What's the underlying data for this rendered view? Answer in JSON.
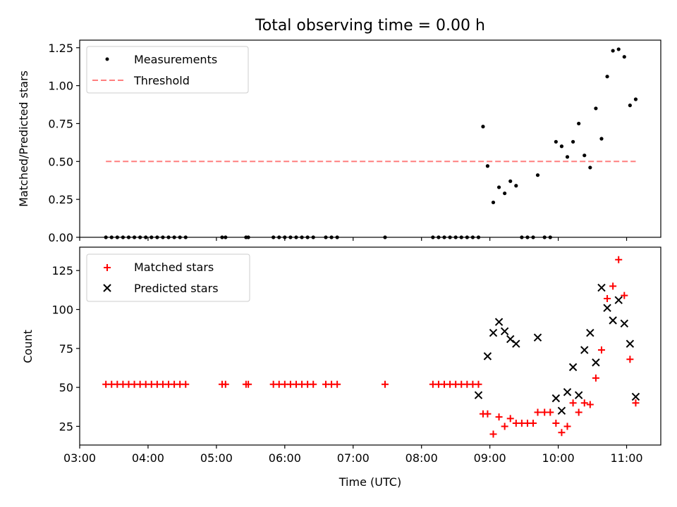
{
  "chart_data": [
    {
      "type": "scatter",
      "title": "Total observing time = 0.00 h",
      "ylabel": "Matched/Predicted stars",
      "ylim": [
        0,
        1.3
      ],
      "yticks": [
        0.0,
        0.25,
        0.5,
        0.75,
        1.0,
        1.25
      ],
      "ytick_labels": [
        "0.00",
        "0.25",
        "0.50",
        "0.75",
        "1.00",
        "1.25"
      ],
      "legend_position": "top-left",
      "series": [
        {
          "name": "Measurements",
          "marker": "dot",
          "color": "#000000",
          "points": [
            [
              "03:23",
              0
            ],
            [
              "03:28",
              0
            ],
            [
              "03:33",
              0
            ],
            [
              "03:38",
              0
            ],
            [
              "03:43",
              0
            ],
            [
              "03:48",
              0
            ],
            [
              "03:53",
              0
            ],
            [
              "03:58",
              0
            ],
            [
              "04:03",
              0
            ],
            [
              "04:08",
              0
            ],
            [
              "04:13",
              0
            ],
            [
              "04:18",
              0
            ],
            [
              "04:23",
              0
            ],
            [
              "04:28",
              0
            ],
            [
              "04:33",
              0
            ],
            [
              "05:05",
              0
            ],
            [
              "05:08",
              0
            ],
            [
              "05:26",
              0
            ],
            [
              "05:28",
              0
            ],
            [
              "05:50",
              0
            ],
            [
              "05:55",
              0
            ],
            [
              "06:00",
              0
            ],
            [
              "06:05",
              0
            ],
            [
              "06:10",
              0
            ],
            [
              "06:15",
              0
            ],
            [
              "06:20",
              0
            ],
            [
              "06:25",
              0
            ],
            [
              "06:36",
              0
            ],
            [
              "06:41",
              0
            ],
            [
              "06:46",
              0
            ],
            [
              "07:28",
              0
            ],
            [
              "08:10",
              0
            ],
            [
              "08:15",
              0
            ],
            [
              "08:20",
              0
            ],
            [
              "08:25",
              0
            ],
            [
              "08:30",
              0
            ],
            [
              "08:35",
              0
            ],
            [
              "08:40",
              0
            ],
            [
              "08:45",
              0
            ],
            [
              "08:50",
              0
            ],
            [
              "08:54",
              0.73
            ],
            [
              "08:58",
              0.47
            ],
            [
              "09:03",
              0.23
            ],
            [
              "09:08",
              0.33
            ],
            [
              "09:13",
              0.29
            ],
            [
              "09:18",
              0.37
            ],
            [
              "09:23",
              0.34
            ],
            [
              "09:28",
              0
            ],
            [
              "09:33",
              0
            ],
            [
              "09:38",
              0
            ],
            [
              "09:42",
              0.41
            ],
            [
              "09:48",
              0
            ],
            [
              "09:53",
              0
            ],
            [
              "09:58",
              0.63
            ],
            [
              "10:03",
              0.6
            ],
            [
              "10:08",
              0.53
            ],
            [
              "10:13",
              0.63
            ],
            [
              "10:18",
              0.75
            ],
            [
              "10:23",
              0.54
            ],
            [
              "10:28",
              0.46
            ],
            [
              "10:33",
              0.85
            ],
            [
              "10:38",
              0.65
            ],
            [
              "10:43",
              1.06
            ],
            [
              "10:48",
              1.23
            ],
            [
              "10:53",
              1.24
            ],
            [
              "10:58",
              1.19
            ],
            [
              "11:03",
              0.87
            ],
            [
              "11:08",
              0.91
            ]
          ]
        },
        {
          "name": "Threshold",
          "marker": "dashed-line",
          "color": "#ff7f7f",
          "points": [
            [
              "03:23",
              0.5
            ],
            [
              "11:08",
              0.5
            ]
          ]
        }
      ]
    },
    {
      "type": "scatter",
      "xlabel": "Time (UTC)",
      "ylabel": "Count",
      "ylim": [
        13,
        140
      ],
      "yticks": [
        25,
        50,
        75,
        100,
        125
      ],
      "ytick_labels": [
        "25",
        "50",
        "75",
        "100",
        "125"
      ],
      "x_axis_range": [
        "03:00",
        "11:30"
      ],
      "xticks": [
        "03:00",
        "04:00",
        "05:00",
        "06:00",
        "07:00",
        "08:00",
        "09:00",
        "10:00",
        "11:00"
      ],
      "legend_position": "top-left",
      "series": [
        {
          "name": "Matched stars",
          "marker": "plus",
          "color": "#ff0000",
          "points": [
            [
              "03:23",
              52
            ],
            [
              "03:28",
              52
            ],
            [
              "03:33",
              52
            ],
            [
              "03:38",
              52
            ],
            [
              "03:43",
              52
            ],
            [
              "03:48",
              52
            ],
            [
              "03:53",
              52
            ],
            [
              "03:58",
              52
            ],
            [
              "04:03",
              52
            ],
            [
              "04:08",
              52
            ],
            [
              "04:13",
              52
            ],
            [
              "04:18",
              52
            ],
            [
              "04:23",
              52
            ],
            [
              "04:28",
              52
            ],
            [
              "04:33",
              52
            ],
            [
              "05:05",
              52
            ],
            [
              "05:08",
              52
            ],
            [
              "05:26",
              52
            ],
            [
              "05:28",
              52
            ],
            [
              "05:50",
              52
            ],
            [
              "05:55",
              52
            ],
            [
              "06:00",
              52
            ],
            [
              "06:05",
              52
            ],
            [
              "06:10",
              52
            ],
            [
              "06:15",
              52
            ],
            [
              "06:20",
              52
            ],
            [
              "06:25",
              52
            ],
            [
              "06:36",
              52
            ],
            [
              "06:41",
              52
            ],
            [
              "06:46",
              52
            ],
            [
              "07:28",
              52
            ],
            [
              "08:10",
              52
            ],
            [
              "08:15",
              52
            ],
            [
              "08:20",
              52
            ],
            [
              "08:25",
              52
            ],
            [
              "08:30",
              52
            ],
            [
              "08:35",
              52
            ],
            [
              "08:40",
              52
            ],
            [
              "08:45",
              52
            ],
            [
              "08:50",
              52
            ],
            [
              "08:54",
              33
            ],
            [
              "08:58",
              33
            ],
            [
              "09:03",
              20
            ],
            [
              "09:08",
              31
            ],
            [
              "09:13",
              25
            ],
            [
              "09:18",
              30
            ],
            [
              "09:23",
              27
            ],
            [
              "09:28",
              27
            ],
            [
              "09:33",
              27
            ],
            [
              "09:38",
              27
            ],
            [
              "09:42",
              34
            ],
            [
              "09:48",
              34
            ],
            [
              "09:53",
              34
            ],
            [
              "09:58",
              27
            ],
            [
              "10:03",
              21
            ],
            [
              "10:08",
              25
            ],
            [
              "10:13",
              40
            ],
            [
              "10:18",
              34
            ],
            [
              "10:23",
              40
            ],
            [
              "10:28",
              39
            ],
            [
              "10:33",
              56
            ],
            [
              "10:38",
              74
            ],
            [
              "10:43",
              107
            ],
            [
              "10:48",
              115
            ],
            [
              "10:53",
              132
            ],
            [
              "10:58",
              109
            ],
            [
              "11:03",
              68
            ],
            [
              "11:08",
              40
            ]
          ]
        },
        {
          "name": "Predicted stars",
          "marker": "x",
          "color": "#000000",
          "points": [
            [
              "08:50",
              45
            ],
            [
              "08:58",
              70
            ],
            [
              "09:03",
              85
            ],
            [
              "09:08",
              92
            ],
            [
              "09:13",
              86
            ],
            [
              "09:18",
              81
            ],
            [
              "09:23",
              78
            ],
            [
              "09:42",
              82
            ],
            [
              "09:58",
              43
            ],
            [
              "10:03",
              35
            ],
            [
              "10:08",
              47
            ],
            [
              "10:13",
              63
            ],
            [
              "10:18",
              45
            ],
            [
              "10:23",
              74
            ],
            [
              "10:28",
              85
            ],
            [
              "10:33",
              66
            ],
            [
              "10:38",
              114
            ],
            [
              "10:43",
              101
            ],
            [
              "10:48",
              93
            ],
            [
              "10:53",
              106
            ],
            [
              "10:58",
              91
            ],
            [
              "11:03",
              78
            ],
            [
              "11:08",
              44
            ]
          ]
        }
      ]
    }
  ]
}
